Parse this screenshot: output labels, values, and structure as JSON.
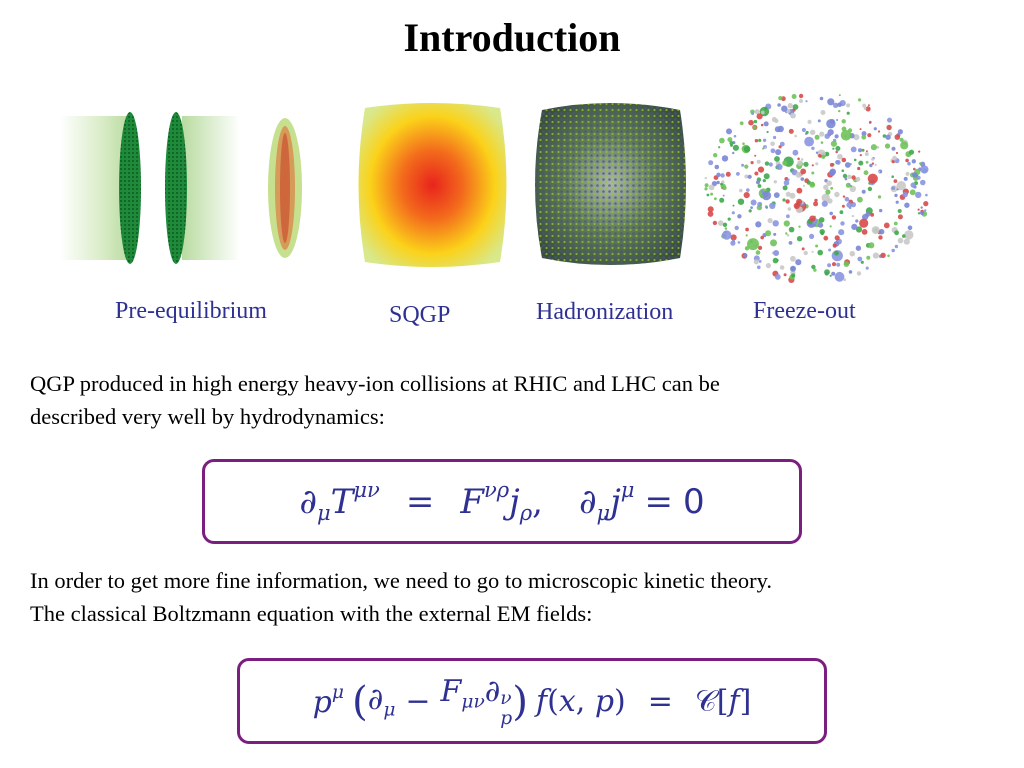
{
  "title": "Introduction",
  "stages": [
    {
      "label": "Pre-equilibrium",
      "image": "colliding-nuclei-image"
    },
    {
      "label": "SQGP",
      "image": "qgp-fireball-image"
    },
    {
      "label": "Hadronization",
      "image": "hadronization-image"
    },
    {
      "label": "Freeze-out",
      "image": "particle-freezeout-image"
    }
  ],
  "paragraph1": {
    "line1": "QGP  produced  in high energy heavy-ion collisions at RHIC and LHC  can be",
    "line2": "described very well by hydrodynamics:"
  },
  "equation1": "∂μT^{μν} = F^{νρ} j_ρ,   ∂μ j^μ = 0",
  "paragraph2": {
    "line1": "In order to get more fine information, we need to go to microscopic  kinetic theory.",
    "line2": "The classical Boltzmann equation with the external EM fields:"
  },
  "equation2": "p^μ (∂_μ − F_{μν} ∂_p^ν) f(x,p) = C[f]",
  "colors": {
    "label": "#2e3192",
    "box": "#7a1f80",
    "equation": "#2e3192"
  }
}
